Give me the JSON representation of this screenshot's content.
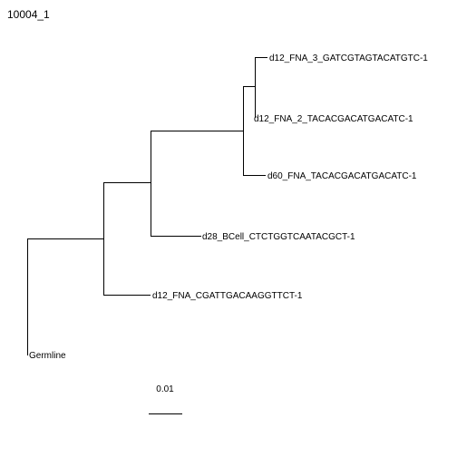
{
  "title": "10004_1",
  "colors": {
    "background": "#ffffff",
    "line": "#000000",
    "text": "#000000"
  },
  "scale_bar": {
    "label": "0.01"
  },
  "tree": {
    "leaves": [
      "d12_FNA_3_GATCGTAGTACATGTC-1",
      "d12_FNA_2_TACACGACATGACATC-1",
      "d60_FNA_TACACGACATGACATC-1",
      "d28_BCell_CTCTGGTCAATACGCT-1",
      "d12_FNA_CGATTGACAAGGTTCT-1",
      "Germline"
    ]
  }
}
